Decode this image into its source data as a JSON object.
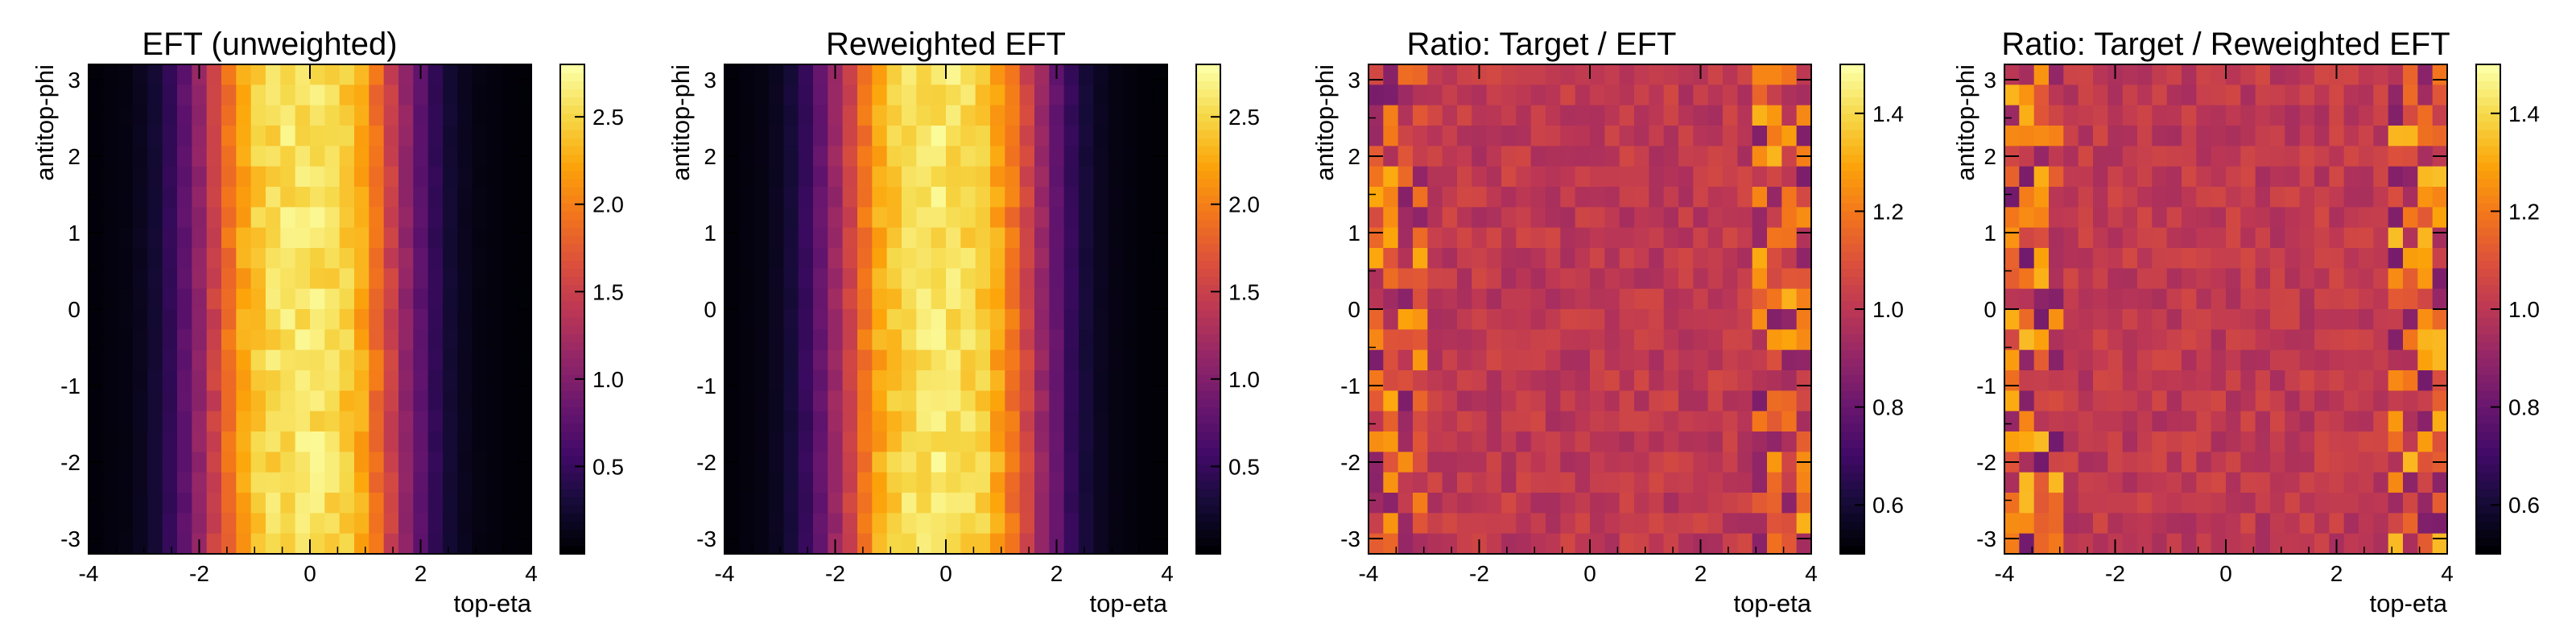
{
  "chart_data": [
    {
      "type": "heatmap",
      "title": "EFT (unweighted)",
      "xlabel": "top-eta",
      "ylabel": "antitop-phi",
      "xlim": [
        -4,
        4
      ],
      "ylim": [
        -3.2,
        3.2
      ],
      "xticks": [
        "-4",
        "-2",
        "0",
        "2",
        "4"
      ],
      "yticks": [
        "-3",
        "-2",
        "-1",
        "0",
        "1",
        "2",
        "3"
      ],
      "colorbar": {
        "range": [
          0.0,
          2.8
        ],
        "ticks": [
          "0.5",
          "1.0",
          "1.5",
          "2.0",
          "2.5"
        ]
      },
      "profile": [
        0.03,
        0.05,
        0.07,
        0.14,
        0.25,
        0.45,
        0.75,
        1.1,
        1.5,
        1.9,
        2.25,
        2.45,
        2.55,
        2.6,
        2.62,
        2.6,
        2.55,
        2.45,
        2.25,
        1.9,
        1.5,
        1.1,
        0.75,
        0.45,
        0.25,
        0.14,
        0.07,
        0.05,
        0.03,
        0.02
      ],
      "noise": 0.06
    },
    {
      "type": "heatmap",
      "title": "Reweighted EFT",
      "xlabel": "top-eta",
      "ylabel": "antitop-phi",
      "xlim": [
        -4,
        4
      ],
      "ylim": [
        -3.2,
        3.2
      ],
      "xticks": [
        "-4",
        "-2",
        "0",
        "2",
        "4"
      ],
      "yticks": [
        "-3",
        "-2",
        "-1",
        "0",
        "1",
        "2",
        "3"
      ],
      "colorbar": {
        "range": [
          0.0,
          2.8
        ],
        "ticks": [
          "0.5",
          "1.0",
          "1.5",
          "2.0",
          "2.5"
        ]
      },
      "profile": [
        0.03,
        0.05,
        0.08,
        0.15,
        0.28,
        0.48,
        0.8,
        1.15,
        1.55,
        1.95,
        2.25,
        2.45,
        2.55,
        2.6,
        2.62,
        2.6,
        2.55,
        2.45,
        2.25,
        1.95,
        1.55,
        1.15,
        0.8,
        0.48,
        0.28,
        0.15,
        0.08,
        0.05,
        0.03,
        0.02
      ],
      "noise": 0.06
    },
    {
      "type": "heatmap",
      "title": "Ratio: Target / EFT",
      "xlabel": "top-eta",
      "ylabel": "antitop-phi",
      "xlim": [
        -4,
        4
      ],
      "ylim": [
        -3.2,
        3.2
      ],
      "xticks": [
        "-4",
        "-2",
        "0",
        "2",
        "4"
      ],
      "yticks": [
        "-3",
        "-2",
        "-1",
        "0",
        "1",
        "2",
        "3"
      ],
      "colorbar": {
        "range": [
          0.5,
          1.5
        ],
        "ticks": [
          "0.6",
          "0.8",
          "1.0",
          "1.2",
          "1.4"
        ]
      },
      "ratio": true,
      "edge_spread": 0.25,
      "center_spread": 0.06
    },
    {
      "type": "heatmap",
      "title": "Ratio: Target / Reweighted EFT",
      "xlabel": "top-eta",
      "ylabel": "antitop-phi",
      "xlim": [
        -4,
        4
      ],
      "ylim": [
        -3.2,
        3.2
      ],
      "xticks": [
        "-4",
        "-2",
        "0",
        "2",
        "4"
      ],
      "yticks": [
        "-3",
        "-2",
        "-1",
        "0",
        "1",
        "2",
        "3"
      ],
      "colorbar": {
        "range": [
          0.5,
          1.5
        ],
        "ticks": [
          "0.6",
          "0.8",
          "1.0",
          "1.2",
          "1.4"
        ]
      },
      "ratio": true,
      "edge_spread": 0.27,
      "center_spread": 0.06
    }
  ]
}
